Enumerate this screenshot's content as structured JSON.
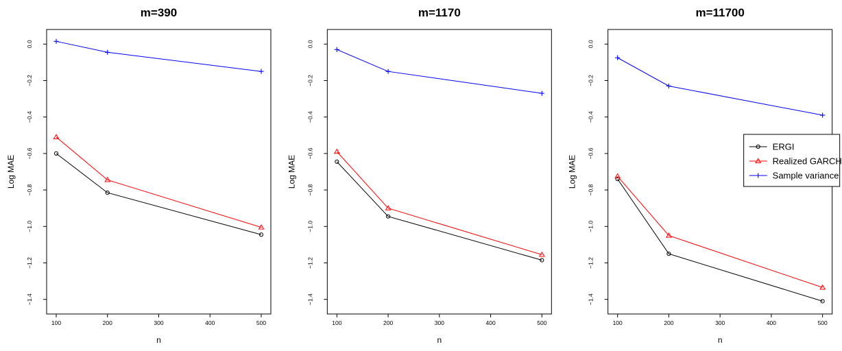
{
  "chart_data": [
    {
      "type": "line",
      "title": "m=390",
      "xlabel": "n",
      "ylabel": "Log MAE",
      "xlim": [
        100,
        500
      ],
      "ylim": [
        -1.45,
        0.05
      ],
      "xticks": [
        "100",
        "200",
        "300",
        "400",
        "500"
      ],
      "yticks": [
        "0.0",
        "−0.2",
        "−0.4",
        "−0.6",
        "−0.8",
        "−1.0",
        "−1.2",
        "−1.4"
      ],
      "x": [
        100,
        200,
        500
      ],
      "grid": false,
      "series": [
        {
          "name": "ERGI",
          "color": "#000000",
          "marker": "circle",
          "values": [
            -0.6,
            -0.815,
            -1.045
          ]
        },
        {
          "name": "Realized GARCH",
          "color": "#ff0000",
          "marker": "triangle",
          "values": [
            -0.51,
            -0.745,
            -1.005
          ]
        },
        {
          "name": "Sample variance",
          "color": "#0000ff",
          "marker": "plus",
          "values": [
            0.015,
            -0.045,
            -0.15
          ]
        }
      ]
    },
    {
      "type": "line",
      "title": "m=1170",
      "xlabel": "n",
      "ylabel": "Log MAE",
      "xlim": [
        100,
        500
      ],
      "ylim": [
        -1.45,
        0.05
      ],
      "xticks": [
        "100",
        "200",
        "300",
        "400",
        "500"
      ],
      "yticks": [
        "0.0",
        "−0.2",
        "−0.4",
        "−0.6",
        "−0.8",
        "−1.0",
        "−1.2",
        "−1.4"
      ],
      "x": [
        100,
        200,
        500
      ],
      "grid": false,
      "series": [
        {
          "name": "ERGI",
          "color": "#000000",
          "marker": "circle",
          "values": [
            -0.645,
            -0.945,
            -1.185
          ]
        },
        {
          "name": "Realized GARCH",
          "color": "#ff0000",
          "marker": "triangle",
          "values": [
            -0.59,
            -0.9,
            -1.155
          ]
        },
        {
          "name": "Sample variance",
          "color": "#0000ff",
          "marker": "plus",
          "values": [
            -0.03,
            -0.15,
            -0.27
          ]
        }
      ]
    },
    {
      "type": "line",
      "title": "m=11700",
      "xlabel": "n",
      "ylabel": "Log MAE",
      "xlim": [
        100,
        500
      ],
      "ylim": [
        -1.45,
        0.05
      ],
      "xticks": [
        "100",
        "200",
        "300",
        "400",
        "500"
      ],
      "yticks": [
        "0.0",
        "−0.2",
        "−0.4",
        "−0.6",
        "−0.8",
        "−1.0",
        "−1.2",
        "−1.4"
      ],
      "x": [
        100,
        200,
        500
      ],
      "grid": false,
      "legend": {
        "position": "right",
        "entries": [
          "ERGI",
          "Realized GARCH",
          "Sample variance"
        ]
      },
      "series": [
        {
          "name": "ERGI",
          "color": "#000000",
          "marker": "circle",
          "values": [
            -0.74,
            -1.15,
            -1.41
          ]
        },
        {
          "name": "Realized GARCH",
          "color": "#ff0000",
          "marker": "triangle",
          "values": [
            -0.725,
            -1.05,
            -1.335
          ]
        },
        {
          "name": "Sample variance",
          "color": "#0000ff",
          "marker": "plus",
          "values": [
            -0.075,
            -0.23,
            -0.39
          ]
        }
      ]
    }
  ]
}
